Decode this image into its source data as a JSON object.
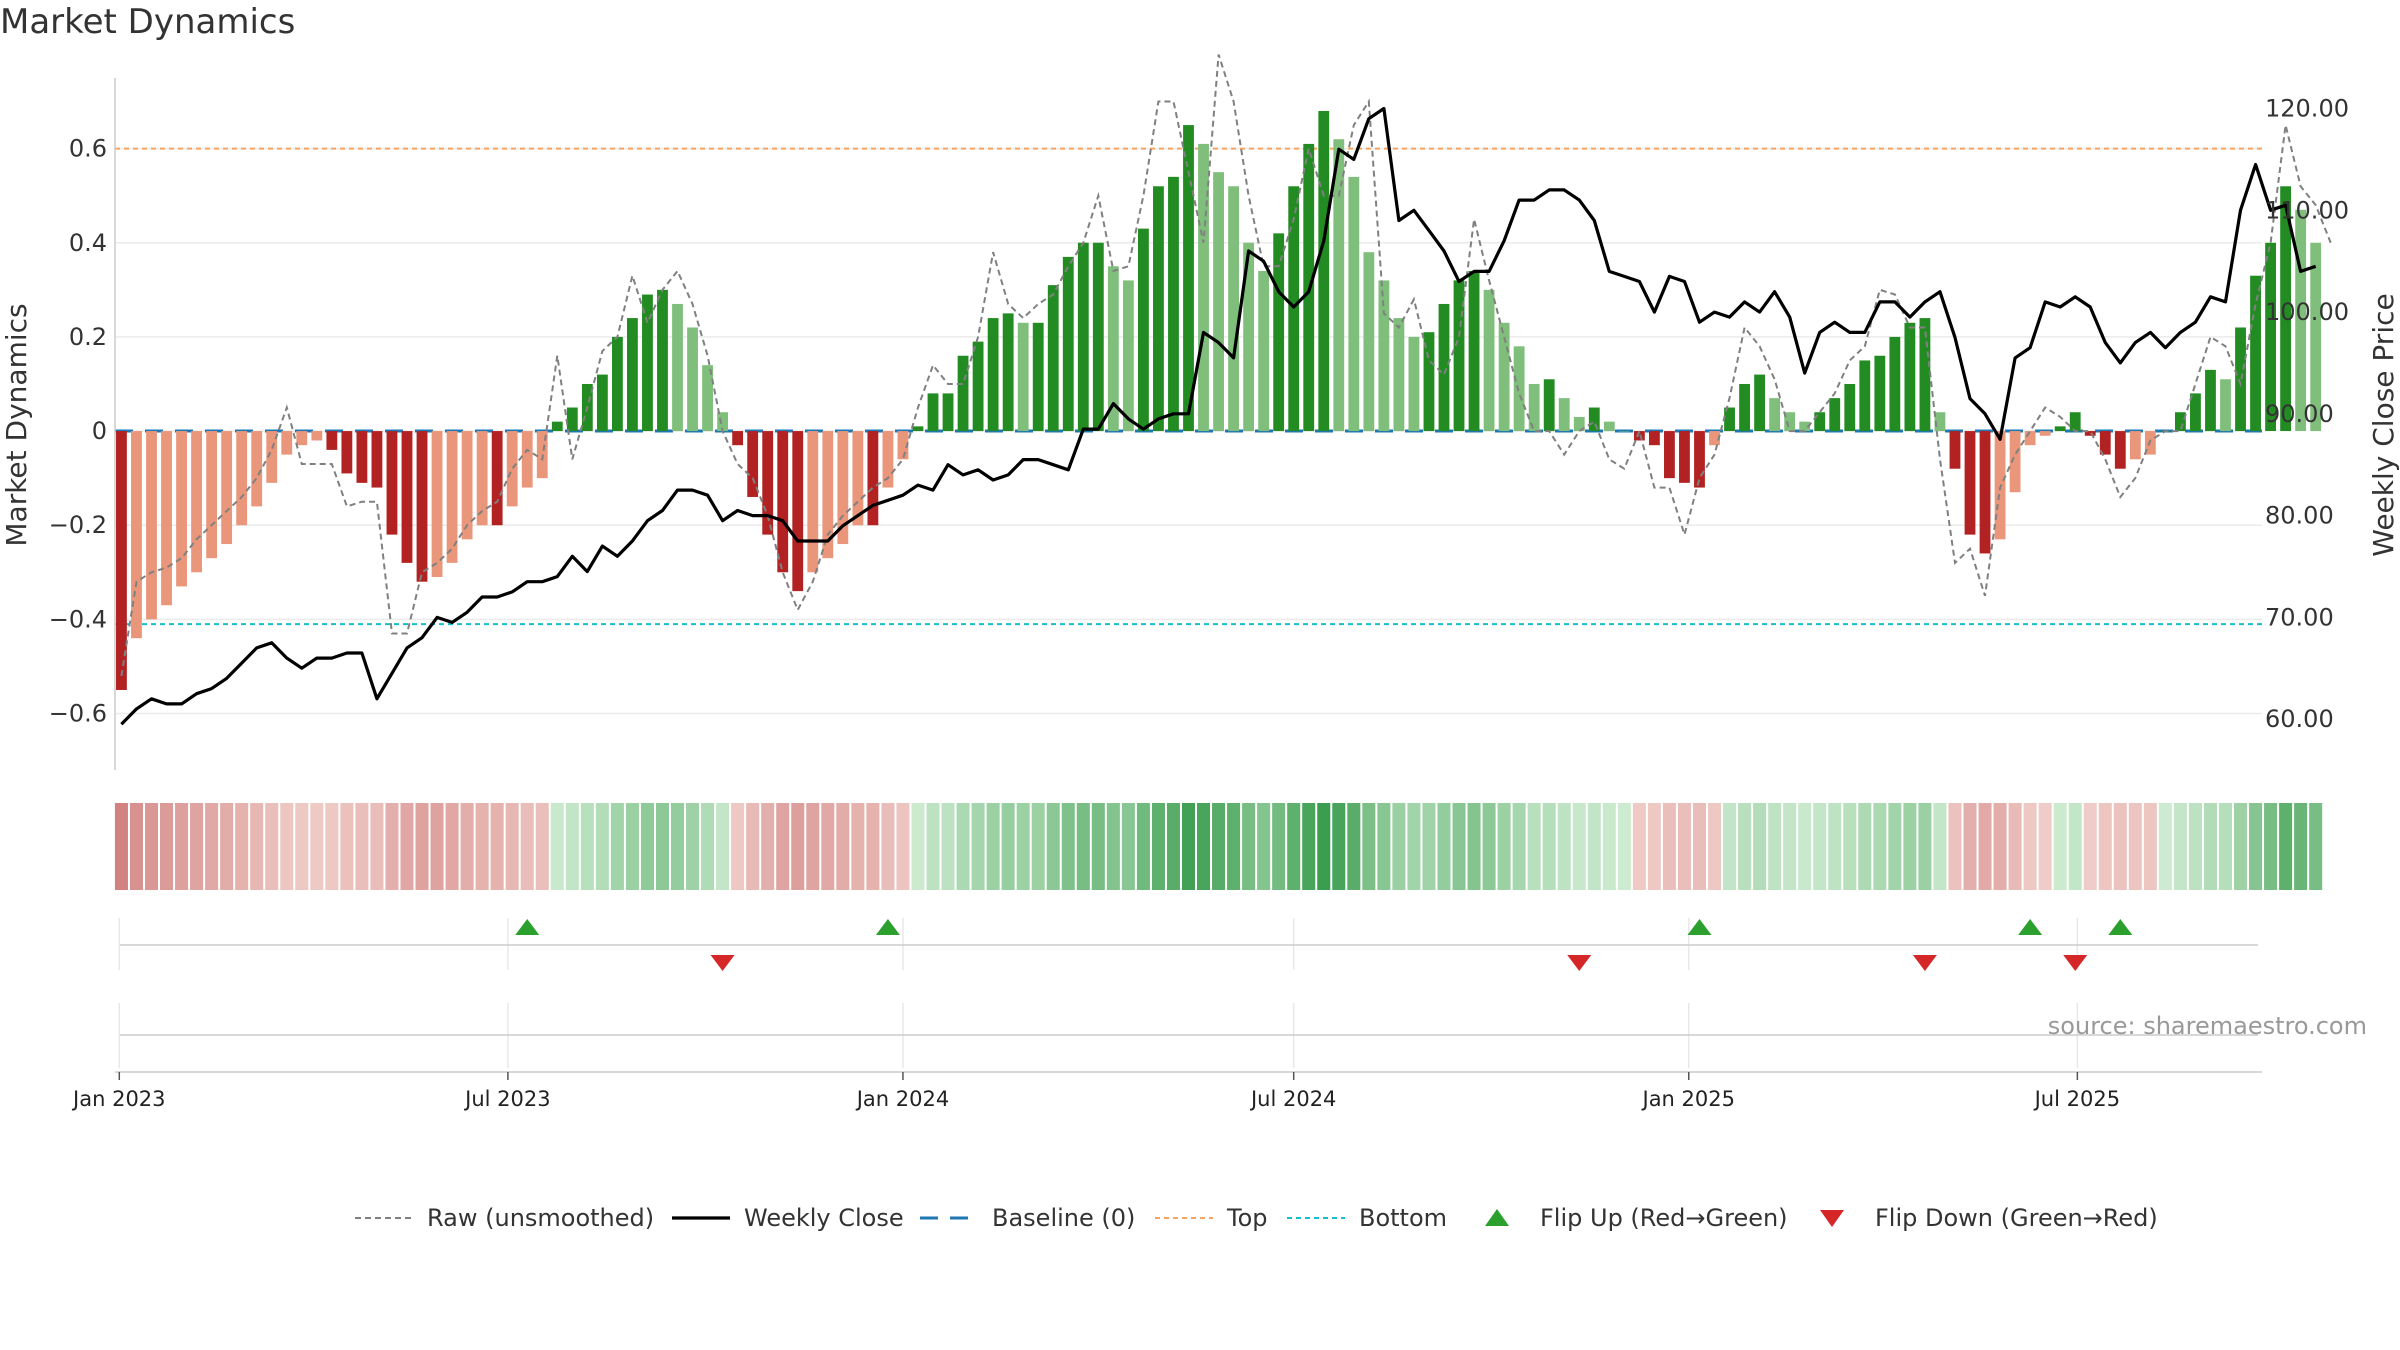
{
  "title": "Market Dynamics",
  "source": "source: sharemaestro.com",
  "colors": {
    "strong_green": "#228b22",
    "light_green": "#7fbf7b",
    "strong_red": "#b22222",
    "light_red": "#e9967a",
    "close": "#000000",
    "raw": "#808080",
    "baseline": "#1f77b4",
    "top": "#f4a460",
    "bottom": "#17becf",
    "flip_up": "#2ca02c",
    "flip_down": "#d62728"
  },
  "chart_data": {
    "type": "bar",
    "title": "Market Dynamics",
    "ylabel": "Market Dynamics",
    "y2label": "Weekly Close Price",
    "ylim": [
      -0.72,
      0.75
    ],
    "y2lim": [
      55.0,
      123.0
    ],
    "x_start": "2023-01-02",
    "x_step_days": 7,
    "x_end": "2025-09-22",
    "y_ticks": [
      0.6,
      0.4,
      0.2,
      0,
      -0.2,
      -0.4,
      -0.6
    ],
    "y_tick_labels": [
      "0.6",
      "0.4",
      "0.2",
      "0",
      "−0.2",
      "−0.4",
      "−0.6"
    ],
    "y2_ticks": [
      120,
      110,
      100,
      90,
      80,
      70,
      60
    ],
    "y2_tick_labels": [
      "120.00",
      "110.00",
      "100.00",
      "90.00",
      "80.00",
      "70.00",
      "60.00"
    ],
    "date_ticks": [
      {
        "date": "2023-01-01",
        "label": "Jan 2023"
      },
      {
        "date": "2023-07-01",
        "label": "Jul 2023"
      },
      {
        "date": "2024-01-01",
        "label": "Jan 2024"
      },
      {
        "date": "2024-07-01",
        "label": "Jul 2024"
      },
      {
        "date": "2025-01-01",
        "label": "Jan 2025"
      },
      {
        "date": "2025-07-01",
        "label": "Jul 2025"
      }
    ],
    "top_level": 0.6,
    "bottom_level": -0.41,
    "series": [
      {
        "name": "Market Dynamics",
        "values": [
          -0.55,
          -0.44,
          -0.4,
          -0.37,
          -0.33,
          -0.3,
          -0.27,
          -0.24,
          -0.2,
          -0.16,
          -0.11,
          -0.05,
          -0.03,
          -0.02,
          -0.04,
          -0.09,
          -0.11,
          -0.12,
          -0.22,
          -0.28,
          -0.32,
          -0.31,
          -0.28,
          -0.23,
          -0.2,
          -0.2,
          -0.16,
          -0.12,
          -0.1,
          0.02,
          0.05,
          0.1,
          0.12,
          0.2,
          0.24,
          0.29,
          0.3,
          0.27,
          0.22,
          0.14,
          0.04,
          -0.03,
          -0.14,
          -0.22,
          -0.3,
          -0.34,
          -0.3,
          -0.27,
          -0.24,
          -0.2,
          -0.2,
          -0.12,
          -0.06,
          0.01,
          0.08,
          0.08,
          0.16,
          0.19,
          0.24,
          0.25,
          0.23,
          0.23,
          0.31,
          0.37,
          0.4,
          0.4,
          0.35,
          0.32,
          0.43,
          0.52,
          0.54,
          0.65,
          0.61,
          0.55,
          0.52,
          0.4,
          0.34,
          0.42,
          0.52,
          0.61,
          0.68,
          0.62,
          0.54,
          0.38,
          0.32,
          0.24,
          0.2,
          0.21,
          0.27,
          0.32,
          0.34,
          0.3,
          0.23,
          0.18,
          0.1,
          0.11,
          0.07,
          0.03,
          0.05,
          0.02,
          0.0,
          -0.02,
          -0.03,
          -0.1,
          -0.11,
          -0.12,
          -0.03,
          0.05,
          0.1,
          0.12,
          0.07,
          0.04,
          0.02,
          0.04,
          0.07,
          0.1,
          0.15,
          0.16,
          0.2,
          0.23,
          0.24,
          0.04,
          -0.08,
          -0.22,
          -0.26,
          -0.23,
          -0.13,
          -0.03,
          -0.01,
          0.01,
          0.04,
          -0.01,
          -0.05,
          -0.08,
          -0.06,
          -0.05,
          0.0,
          0.04,
          0.08,
          0.13,
          0.11,
          0.22,
          0.33,
          0.4,
          0.52,
          0.47,
          0.4
        ]
      },
      {
        "name": "Raw (unsmoothed)",
        "values": [
          -0.52,
          -0.32,
          -0.3,
          -0.29,
          -0.27,
          -0.23,
          -0.2,
          -0.17,
          -0.14,
          -0.1,
          -0.04,
          0.05,
          -0.07,
          -0.07,
          -0.07,
          -0.16,
          -0.15,
          -0.15,
          -0.43,
          -0.43,
          -0.3,
          -0.28,
          -0.25,
          -0.2,
          -0.17,
          -0.15,
          -0.08,
          -0.04,
          -0.06,
          0.16,
          -0.06,
          0.05,
          0.17,
          0.2,
          0.33,
          0.23,
          0.3,
          0.34,
          0.27,
          0.16,
          0.0,
          -0.07,
          -0.1,
          -0.18,
          -0.3,
          -0.38,
          -0.32,
          -0.22,
          -0.18,
          -0.15,
          -0.12,
          -0.1,
          -0.06,
          0.05,
          0.14,
          0.1,
          0.1,
          0.2,
          0.38,
          0.27,
          0.24,
          0.27,
          0.29,
          0.35,
          0.4,
          0.5,
          0.34,
          0.35,
          0.5,
          0.7,
          0.7,
          0.55,
          0.4,
          0.8,
          0.7,
          0.5,
          0.35,
          0.35,
          0.45,
          0.6,
          0.5,
          0.5,
          0.65,
          0.7,
          0.25,
          0.22,
          0.28,
          0.15,
          0.12,
          0.2,
          0.45,
          0.32,
          0.2,
          0.08,
          0.0,
          0.0,
          -0.05,
          0.0,
          0.02,
          -0.06,
          -0.08,
          0.0,
          -0.12,
          -0.12,
          -0.22,
          -0.1,
          -0.05,
          0.07,
          0.22,
          0.18,
          0.11,
          0.0,
          0.0,
          0.04,
          0.08,
          0.15,
          0.18,
          0.3,
          0.29,
          0.22,
          0.22,
          -0.06,
          -0.28,
          -0.25,
          -0.35,
          -0.12,
          -0.05,
          0.0,
          0.05,
          0.03,
          0.0,
          0.0,
          -0.06,
          -0.14,
          -0.1,
          -0.02,
          0.0,
          0.0,
          0.1,
          0.2,
          0.18,
          0.1,
          0.27,
          0.4,
          0.65,
          0.52,
          0.48,
          0.4
        ]
      },
      {
        "name": "Weekly Close",
        "values": [
          59.5,
          61.0,
          62.0,
          61.5,
          61.5,
          62.5,
          63.0,
          64.0,
          65.5,
          67.0,
          67.5,
          66.0,
          65.0,
          66.0,
          66.0,
          66.5,
          66.5,
          62.0,
          64.5,
          67.0,
          68.0,
          70.0,
          69.5,
          70.5,
          72.0,
          72.0,
          72.5,
          73.5,
          73.5,
          74.0,
          76.0,
          74.5,
          77.0,
          76.0,
          77.5,
          79.5,
          80.5,
          82.5,
          82.5,
          82.0,
          79.5,
          80.5,
          80.0,
          80.0,
          79.5,
          77.5,
          77.5,
          77.5,
          79.0,
          80.0,
          81.0,
          81.5,
          82.0,
          83.0,
          82.5,
          85.0,
          84.0,
          84.5,
          83.5,
          84.0,
          85.5,
          85.5,
          85.0,
          84.5,
          88.5,
          88.5,
          91.0,
          89.5,
          88.5,
          89.5,
          90.0,
          90.0,
          98.0,
          97.0,
          95.5,
          106.0,
          105.0,
          102.0,
          100.5,
          102.0,
          107.0,
          116.0,
          115.0,
          119.0,
          120.0,
          109.0,
          110.0,
          108.0,
          106.0,
          103.0,
          104.0,
          104.0,
          107.0,
          111.0,
          111.0,
          112.0,
          112.0,
          111.0,
          109.0,
          104.0,
          103.5,
          103.0,
          100.0,
          103.5,
          103.0,
          99.0,
          100.0,
          99.5,
          101.0,
          100.0,
          102.0,
          99.5,
          94.0,
          98.0,
          99.0,
          98.0,
          98.0,
          101.0,
          101.0,
          99.5,
          101.0,
          102.0,
          97.5,
          91.5,
          90.0,
          87.5,
          95.5,
          96.5,
          101.0,
          100.5,
          101.5,
          100.5,
          97.0,
          95.0,
          97.0,
          98.0,
          96.5,
          98.0,
          99.0,
          101.5,
          101.0,
          110.0,
          114.5,
          110.0,
          110.5,
          104.0,
          104.5
        ]
      }
    ],
    "strip_values": [
      -0.55,
      -0.44,
      -0.4,
      -0.37,
      -0.33,
      -0.3,
      -0.27,
      -0.24,
      -0.2,
      -0.16,
      -0.11,
      -0.05,
      -0.03,
      -0.02,
      -0.04,
      -0.09,
      -0.11,
      -0.12,
      -0.22,
      -0.28,
      -0.32,
      -0.31,
      -0.28,
      -0.23,
      -0.2,
      -0.2,
      -0.16,
      -0.12,
      -0.1,
      0.02,
      0.05,
      0.1,
      0.12,
      0.2,
      0.24,
      0.29,
      0.3,
      0.27,
      0.22,
      0.14,
      0.04,
      -0.03,
      -0.14,
      -0.22,
      -0.3,
      -0.34,
      -0.3,
      -0.27,
      -0.24,
      -0.2,
      -0.2,
      -0.12,
      -0.06,
      0.01,
      0.08,
      0.08,
      0.16,
      0.19,
      0.24,
      0.25,
      0.23,
      0.23,
      0.31,
      0.37,
      0.4,
      0.4,
      0.35,
      0.32,
      0.43,
      0.52,
      0.54,
      0.65,
      0.61,
      0.55,
      0.52,
      0.4,
      0.34,
      0.42,
      0.52,
      0.61,
      0.68,
      0.62,
      0.54,
      0.38,
      0.32,
      0.24,
      0.2,
      0.21,
      0.27,
      0.32,
      0.34,
      0.3,
      0.23,
      0.18,
      0.1,
      0.11,
      0.07,
      0.03,
      0.05,
      0.02,
      0.0,
      -0.02,
      -0.03,
      -0.1,
      -0.11,
      -0.12,
      -0.03,
      0.05,
      0.1,
      0.12,
      0.07,
      0.04,
      0.02,
      0.04,
      0.07,
      0.1,
      0.15,
      0.16,
      0.2,
      0.23,
      0.24,
      0.04,
      -0.08,
      -0.22,
      -0.26,
      -0.23,
      -0.13,
      -0.03,
      -0.01,
      0.01,
      0.04,
      -0.01,
      -0.05,
      -0.08,
      -0.06,
      -0.05,
      0.0,
      0.04,
      0.08,
      0.13,
      0.11,
      0.22,
      0.33,
      0.4,
      0.52,
      0.47,
      0.4
    ],
    "flips_up": [
      "2023-07-10",
      "2023-12-25",
      "2025-01-06",
      "2025-06-09",
      "2025-07-21"
    ],
    "flips_down": [
      "2023-10-09",
      "2024-11-11",
      "2025-04-21",
      "2025-06-30"
    ],
    "legend": {
      "position": "bottom",
      "entries": [
        "Raw (unsmoothed)",
        "Weekly Close",
        "Baseline (0)",
        "Top",
        "Bottom",
        "Flip Up (Red→Green)",
        "Flip Down (Green→Red)"
      ]
    },
    "grid": true
  }
}
